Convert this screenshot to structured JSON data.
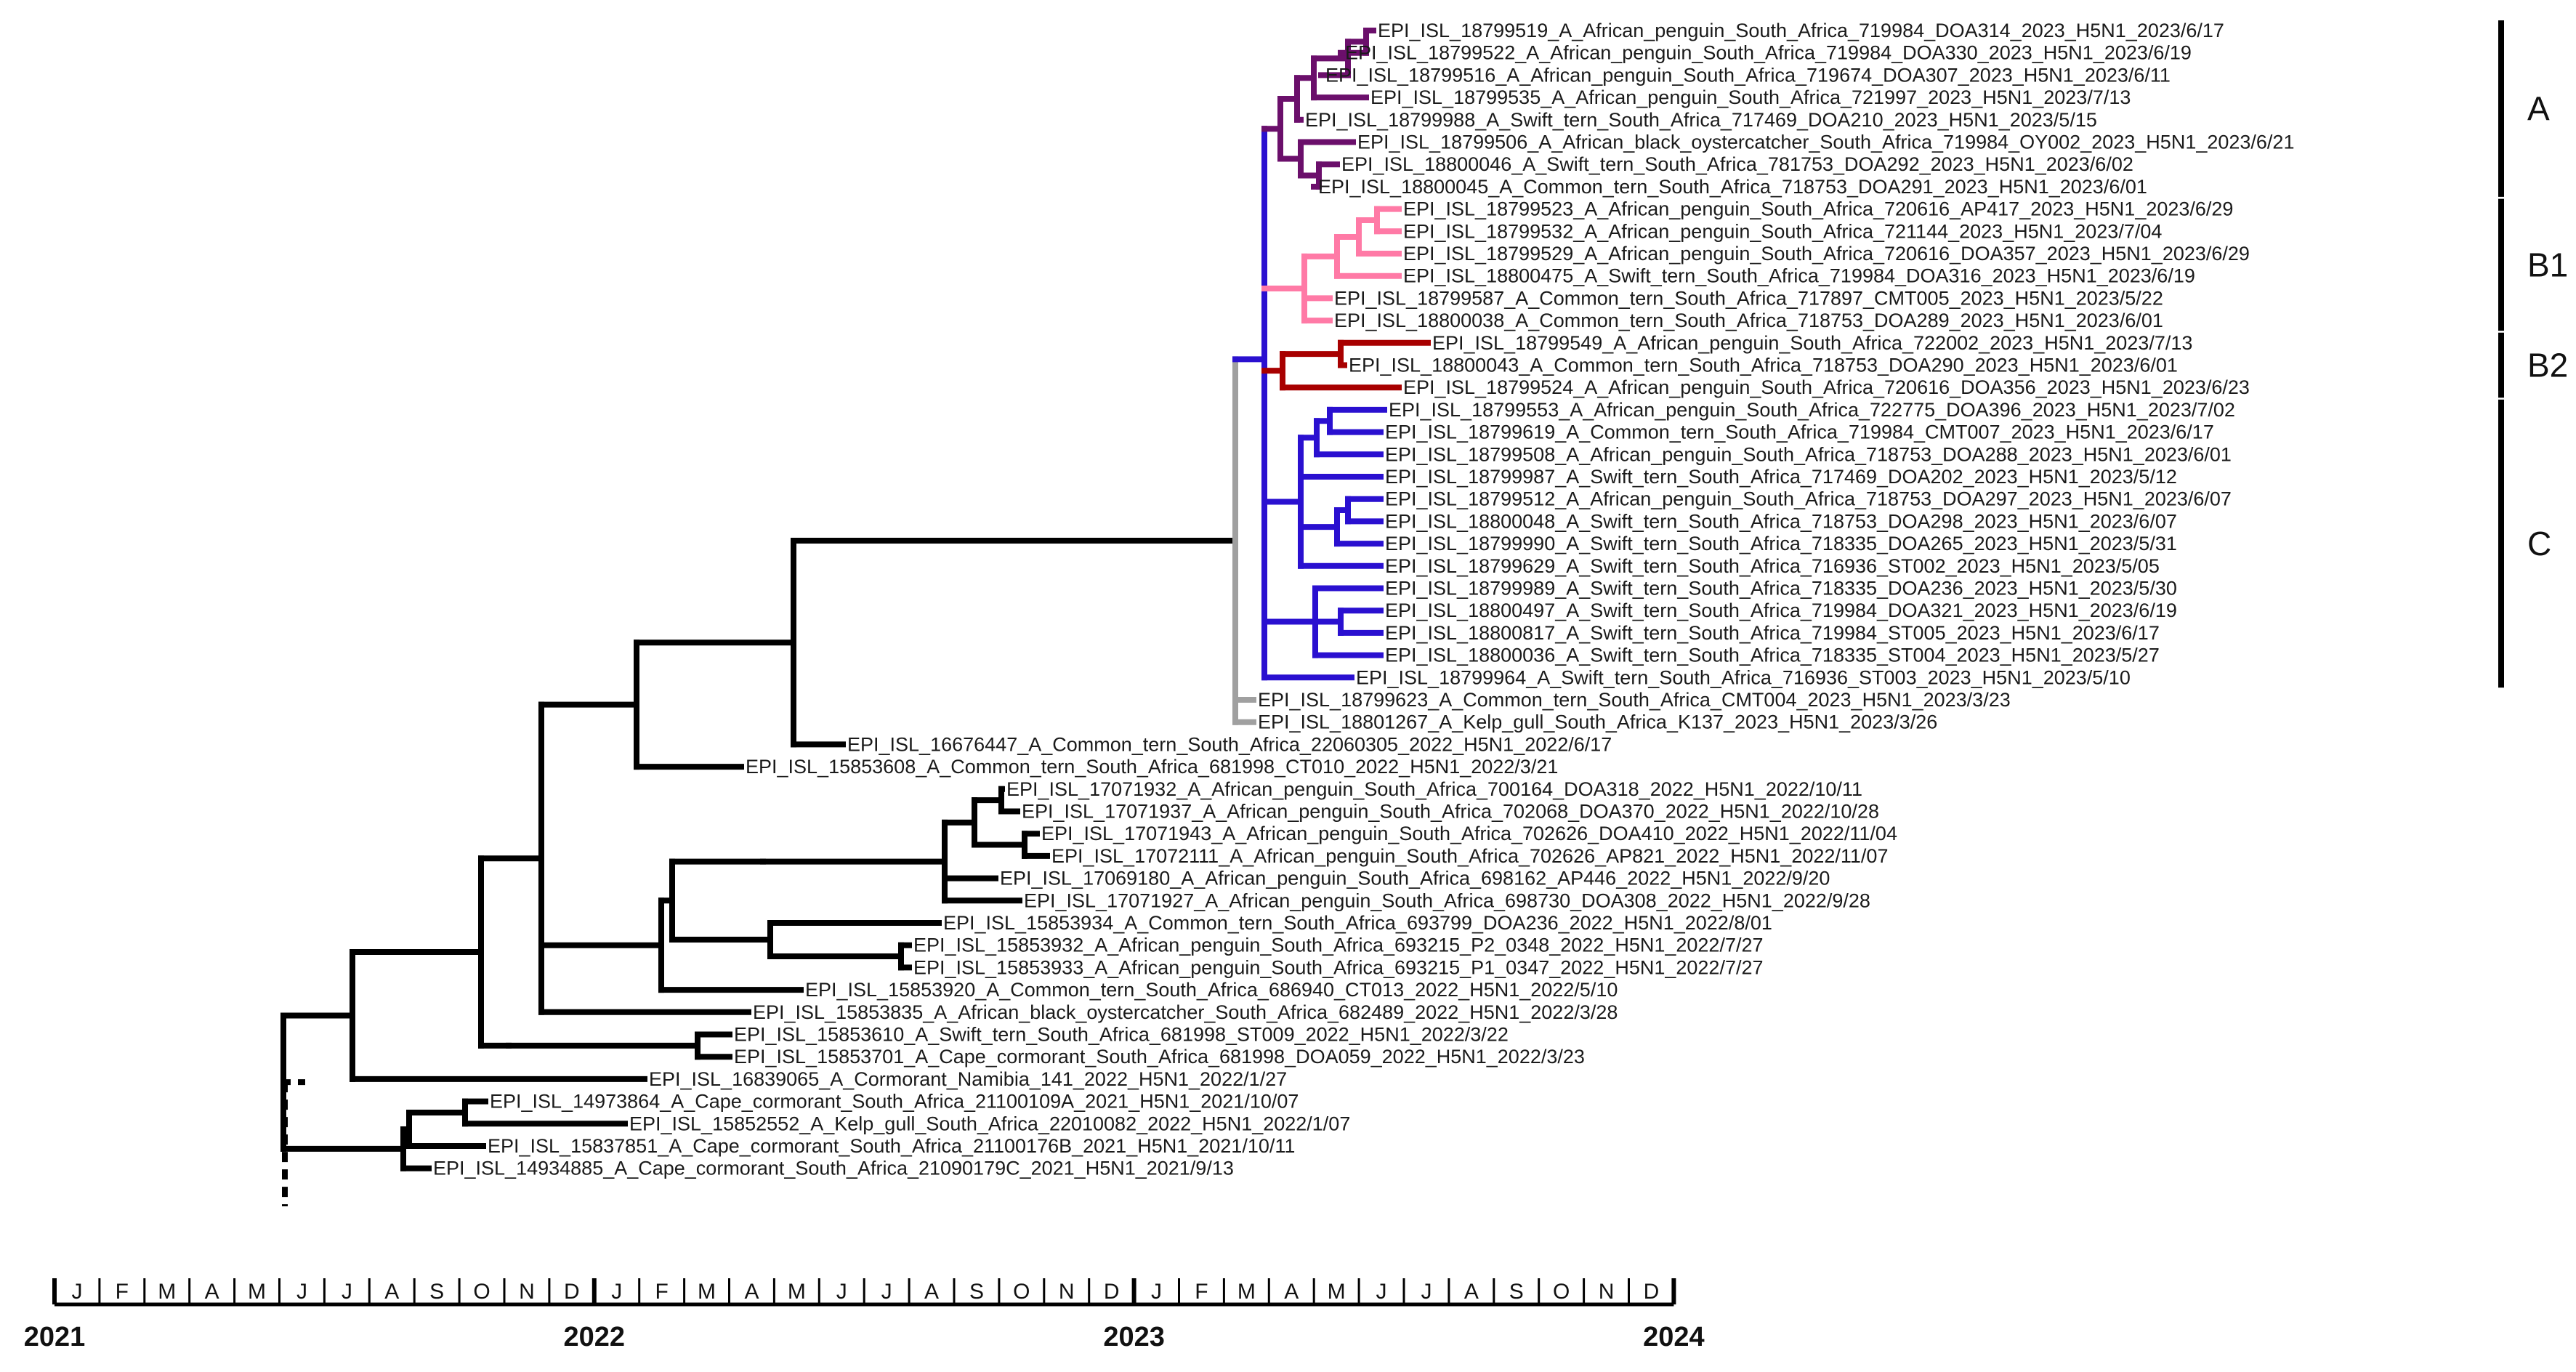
{
  "colors": {
    "A": "#6b0f6b",
    "B1": "#ff7aa6",
    "B2": "#a80000",
    "C": "#2a10d0",
    "outgroup": "#a0a0a0",
    "base": "#000000"
  },
  "taxa": [
    {
      "label": "EPI_ISL_18799519_A_African_penguin_South_Africa_719984_DOA314_2023_H5N1_2023/6/17",
      "clade": "A"
    },
    {
      "label": "EPI_ISL_18799522_A_African_penguin_South_Africa_719984_DOA330_2023_H5N1_2023/6/19",
      "clade": "A"
    },
    {
      "label": "EPI_ISL_18799516_A_African_penguin_South_Africa_719674_DOA307_2023_H5N1_2023/6/11",
      "clade": "A"
    },
    {
      "label": "EPI_ISL_18799535_A_African_penguin_South_Africa_721997_2023_H5N1_2023/7/13",
      "clade": "A"
    },
    {
      "label": "EPI_ISL_18799988_A_Swift_tern_South_Africa_717469_DOA210_2023_H5N1_2023/5/15",
      "clade": "A"
    },
    {
      "label": "EPI_ISL_18799506_A_African_black_oystercatcher_South_Africa_719984_OY002_2023_H5N1_2023/6/21",
      "clade": "A"
    },
    {
      "label": "EPI_ISL_18800046_A_Swift_tern_South_Africa_781753_DOA292_2023_H5N1_2023/6/02",
      "clade": "A"
    },
    {
      "label": "EPI_ISL_18800045_A_Common_tern_South_Africa_718753_DOA291_2023_H5N1_2023/6/01",
      "clade": "A"
    },
    {
      "label": "EPI_ISL_18799523_A_African_penguin_South_Africa_720616_AP417_2023_H5N1_2023/6/29",
      "clade": "B1"
    },
    {
      "label": "EPI_ISL_18799532_A_African_penguin_South_Africa_721144_2023_H5N1_2023/7/04",
      "clade": "B1"
    },
    {
      "label": "EPI_ISL_18799529_A_African_penguin_South_Africa_720616_DOA357_2023_H5N1_2023/6/29",
      "clade": "B1"
    },
    {
      "label": "EPI_ISL_18800475_A_Swift_tern_South_Africa_719984_DOA316_2023_H5N1_2023/6/19",
      "clade": "B1"
    },
    {
      "label": "EPI_ISL_18799587_A_Common_tern_South_Africa_717897_CMT005_2023_H5N1_2023/5/22",
      "clade": "B1"
    },
    {
      "label": "EPI_ISL_18800038_A_Common_tern_South_Africa_718753_DOA289_2023_H5N1_2023/6/01",
      "clade": "B1"
    },
    {
      "label": "EPI_ISL_18799549_A_African_penguin_South_Africa_722002_2023_H5N1_2023/7/13",
      "clade": "B2"
    },
    {
      "label": "EPI_ISL_18800043_A_Common_tern_South_Africa_718753_DOA290_2023_H5N1_2023/6/01",
      "clade": "B2"
    },
    {
      "label": "EPI_ISL_18799524_A_African_penguin_South_Africa_720616_DOA356_2023_H5N1_2023/6/23",
      "clade": "B2"
    },
    {
      "label": "EPI_ISL_18799553_A_African_penguin_South_Africa_722775_DOA396_2023_H5N1_2023/7/02",
      "clade": "C"
    },
    {
      "label": "EPI_ISL_18799619_A_Common_tern_South_Africa_719984_CMT007_2023_H5N1_2023/6/17",
      "clade": "C"
    },
    {
      "label": "EPI_ISL_18799508_A_African_penguin_South_Africa_718753_DOA288_2023_H5N1_2023/6/01",
      "clade": "C"
    },
    {
      "label": "EPI_ISL_18799987_A_Swift_tern_South_Africa_717469_DOA202_2023_H5N1_2023/5/12",
      "clade": "C"
    },
    {
      "label": "EPI_ISL_18799512_A_African_penguin_South_Africa_718753_DOA297_2023_H5N1_2023/6/07",
      "clade": "C"
    },
    {
      "label": "EPI_ISL_18800048_A_Swift_tern_South_Africa_718753_DOA298_2023_H5N1_2023/6/07",
      "clade": "C"
    },
    {
      "label": "EPI_ISL_18799990_A_Swift_tern_South_Africa_718335_DOA265_2023_H5N1_2023/5/31",
      "clade": "C"
    },
    {
      "label": "EPI_ISL_18799629_A_Swift_tern_South_Africa_716936_ST002_2023_H5N1_2023/5/05",
      "clade": "C"
    },
    {
      "label": "EPI_ISL_18799989_A_Swift_tern_South_Africa_718335_DOA236_2023_H5N1_2023/5/30",
      "clade": "C"
    },
    {
      "label": "EPI_ISL_18800497_A_Swift_tern_South_Africa_719984_DOA321_2023_H5N1_2023/6/19",
      "clade": "C"
    },
    {
      "label": "EPI_ISL_18800817_A_Swift_tern_South_Africa_719984_ST005_2023_H5N1_2023/6/17",
      "clade": "C"
    },
    {
      "label": "EPI_ISL_18800036_A_Swift_tern_South_Africa_718335_ST004_2023_H5N1_2023/5/27",
      "clade": "C"
    },
    {
      "label": "EPI_ISL_18799964_A_Swift_tern_South_Africa_716936_ST003_2023_H5N1_2023/5/10",
      "clade": "C"
    },
    {
      "label": "EPI_ISL_18799623_A_Common_tern_South_Africa_CMT004_2023_H5N1_2023/3/23",
      "clade": "outgroup"
    },
    {
      "label": "EPI_ISL_18801267_A_Kelp_gull_South_Africa_K137_2023_H5N1_2023/3/26",
      "clade": "outgroup"
    },
    {
      "label": "EPI_ISL_16676447_A_Common_tern_South_Africa_22060305_2022_H5N1_2022/6/17",
      "clade": "base"
    },
    {
      "label": "EPI_ISL_15853608_A_Common_tern_South_Africa_681998_CT010_2022_H5N1_2022/3/21",
      "clade": "base"
    },
    {
      "label": "EPI_ISL_17071932_A_African_penguin_South_Africa_700164_DOA318_2022_H5N1_2022/10/11",
      "clade": "base"
    },
    {
      "label": "EPI_ISL_17071937_A_African_penguin_South_Africa_702068_DOA370_2022_H5N1_2022/10/28",
      "clade": "base"
    },
    {
      "label": "EPI_ISL_17071943_A_African_penguin_South_Africa_702626_DOA410_2022_H5N1_2022/11/04",
      "clade": "base"
    },
    {
      "label": "EPI_ISL_17072111_A_African_penguin_South_Africa_702626_AP821_2022_H5N1_2022/11/07",
      "clade": "base"
    },
    {
      "label": "EPI_ISL_17069180_A_African_penguin_South_Africa_698162_AP446_2022_H5N1_2022/9/20",
      "clade": "base"
    },
    {
      "label": "EPI_ISL_17071927_A_African_penguin_South_Africa_698730_DOA308_2022_H5N1_2022/9/28",
      "clade": "base"
    },
    {
      "label": "EPI_ISL_15853934_A_Common_tern_South_Africa_693799_DOA236_2022_H5N1_2022/8/01",
      "clade": "base"
    },
    {
      "label": "EPI_ISL_15853932_A_African_penguin_South_Africa_693215_P2_0348_2022_H5N1_2022/7/27",
      "clade": "base"
    },
    {
      "label": "EPI_ISL_15853933_A_African_penguin_South_Africa_693215_P1_0347_2022_H5N1_2022/7/27",
      "clade": "base"
    },
    {
      "label": "EPI_ISL_15853920_A_Common_tern_South_Africa_686940_CT013_2022_H5N1_2022/5/10",
      "clade": "base"
    },
    {
      "label": "EPI_ISL_15853835_A_African_black_oystercatcher_South_Africa_682489_2022_H5N1_2022/3/28",
      "clade": "base"
    },
    {
      "label": "EPI_ISL_15853610_A_Swift_tern_South_Africa_681998_ST009_2022_H5N1_2022/3/22",
      "clade": "base"
    },
    {
      "label": "EPI_ISL_15853701_A_Cape_cormorant_South_Africa_681998_DOA059_2022_H5N1_2022/3/23",
      "clade": "base"
    },
    {
      "label": "EPI_ISL_16839065_A_Cormorant_Namibia_141_2022_H5N1_2022/1/27",
      "clade": "base"
    },
    {
      "label": "EPI_ISL_14973864_A_Cape_cormorant_South_Africa_21100109A_2021_H5N1_2021/10/07",
      "clade": "base"
    },
    {
      "label": "EPI_ISL_15852552_A_Kelp_gull_South_Africa_22010082_2022_H5N1_2022/1/07",
      "clade": "base"
    },
    {
      "label": "EPI_ISL_15837851_A_Cape_cormorant_South_Africa_21100176B_2021_H5N1_2021/10/11",
      "clade": "base"
    },
    {
      "label": "EPI_ISL_14934885_A_Cape_cormorant_South_Africa_21090179C_2021_H5N1_2021/9/13",
      "clade": "base"
    }
  ],
  "clade_brackets": [
    {
      "name": "A",
      "label": "A"
    },
    {
      "name": "B1",
      "label": "B1"
    },
    {
      "name": "B2",
      "label": "B2"
    },
    {
      "name": "C",
      "label": "C"
    }
  ],
  "time_axis": {
    "months": [
      "J",
      "F",
      "M",
      "A",
      "M",
      "J",
      "J",
      "A",
      "S",
      "O",
      "N",
      "D",
      "J",
      "F",
      "M",
      "A",
      "M",
      "J",
      "J",
      "A",
      "S",
      "O",
      "N",
      "D",
      "J",
      "F",
      "M",
      "A",
      "M",
      "J",
      "J",
      "A",
      "S",
      "O",
      "N",
      "D"
    ],
    "years": [
      "2021",
      "2022",
      "2023",
      "2024"
    ]
  }
}
